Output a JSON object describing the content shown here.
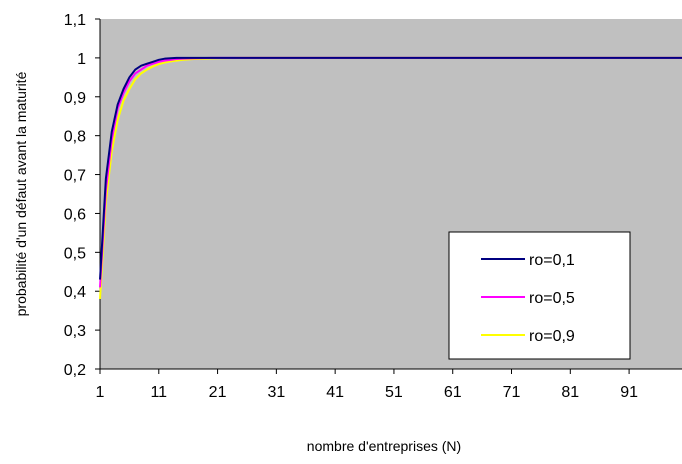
{
  "chart_data": {
    "type": "line",
    "title": "",
    "xlabel": "nombre d'entreprises (N)",
    "ylabel": "probabilité d'un défaut avant la maturité",
    "xlim": [
      1,
      100
    ],
    "ylim": [
      0.2,
      1.1
    ],
    "x_ticks": [
      "1",
      "11",
      "21",
      "31",
      "41",
      "51",
      "61",
      "71",
      "81",
      "91"
    ],
    "y_ticks": [
      "0,2",
      "0,3",
      "0,4",
      "0,5",
      "0,6",
      "0,7",
      "0,8",
      "0,9",
      "1",
      "1,1"
    ],
    "grid": false,
    "legend_position": "bottom-right",
    "plot_background": "#c0c0c0",
    "series": [
      {
        "name": "ro=0,1",
        "color": "#000080",
        "x": [
          1,
          2,
          3,
          4,
          5,
          6,
          7,
          8,
          9,
          10,
          11,
          12,
          13,
          14,
          15,
          20,
          100
        ],
        "values": [
          0.43,
          0.69,
          0.81,
          0.88,
          0.92,
          0.95,
          0.97,
          0.98,
          0.985,
          0.99,
          0.995,
          0.998,
          0.999,
          1.0,
          1.0,
          1.0,
          1.0
        ]
      },
      {
        "name": "ro=0,5",
        "color": "#ff00ff",
        "x": [
          1,
          2,
          3,
          4,
          5,
          6,
          7,
          8,
          9,
          10,
          11,
          12,
          13,
          14,
          15,
          17,
          20,
          100
        ],
        "values": [
          0.41,
          0.66,
          0.79,
          0.87,
          0.91,
          0.94,
          0.96,
          0.97,
          0.98,
          0.985,
          0.99,
          0.993,
          0.995,
          0.997,
          0.998,
          0.999,
          1.0,
          1.0
        ]
      },
      {
        "name": "ro=0,9",
        "color": "#ffff00",
        "x": [
          1,
          2,
          3,
          4,
          5,
          6,
          7,
          8,
          9,
          10,
          11,
          12,
          13,
          14,
          15,
          17,
          19,
          21,
          25,
          100
        ],
        "values": [
          0.38,
          0.63,
          0.76,
          0.84,
          0.89,
          0.92,
          0.945,
          0.96,
          0.97,
          0.978,
          0.984,
          0.988,
          0.991,
          0.993,
          0.995,
          0.997,
          0.998,
          0.999,
          1.0,
          1.0
        ]
      }
    ]
  }
}
